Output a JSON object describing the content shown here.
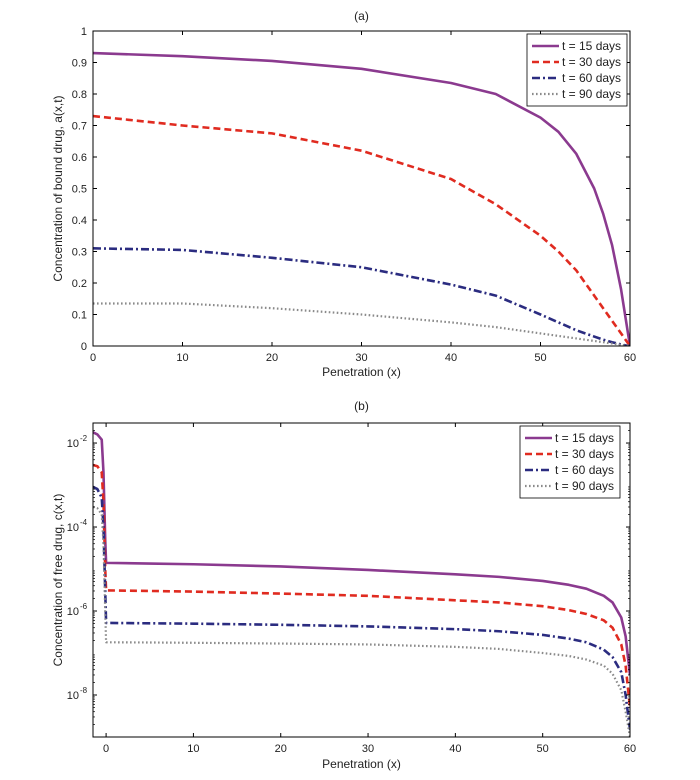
{
  "chart_data": [
    {
      "type": "line",
      "title": "(a)",
      "xlabel": "Penetration (x)",
      "ylabel": "Concentration of bound drug, a(x,t)",
      "xlim": [
        0,
        60
      ],
      "ylim": [
        0,
        1
      ],
      "yscale": "linear",
      "xticks": [
        0,
        10,
        20,
        30,
        40,
        50,
        60
      ],
      "xtick_labels": [
        "0",
        "10",
        "20",
        "30",
        "40",
        "50",
        "60"
      ],
      "yticks": [
        0,
        0.1,
        0.2,
        0.3,
        0.4,
        0.5,
        0.6,
        0.7,
        0.8,
        0.9,
        1
      ],
      "ytick_labels": [
        "0",
        "0.1",
        "0.2",
        "0.3",
        "0.4",
        "0.5",
        "0.6",
        "0.7",
        "0.8",
        "0.9",
        "1"
      ],
      "grid": false,
      "legend_position": "top-right",
      "x": [
        0,
        10,
        20,
        30,
        40,
        45,
        50,
        52,
        54,
        56,
        57,
        58,
        59,
        59.5,
        60
      ],
      "series": [
        {
          "name": "t = 15 days",
          "color": "#8b3a8f",
          "dash": "solid",
          "values": [
            0.93,
            0.92,
            0.905,
            0.88,
            0.835,
            0.8,
            0.725,
            0.68,
            0.61,
            0.5,
            0.42,
            0.32,
            0.18,
            0.09,
            0.0
          ]
        },
        {
          "name": "t = 30 days",
          "color": "#e02b20",
          "dash": "dashed",
          "values": [
            0.73,
            0.7,
            0.675,
            0.62,
            0.53,
            0.45,
            0.35,
            0.3,
            0.24,
            0.16,
            0.12,
            0.08,
            0.04,
            0.02,
            0.0
          ]
        },
        {
          "name": "t = 60 days",
          "color": "#2b2c80",
          "dash": "dashdot",
          "values": [
            0.31,
            0.305,
            0.28,
            0.25,
            0.195,
            0.16,
            0.1,
            0.075,
            0.05,
            0.03,
            0.02,
            0.012,
            0.005,
            0.002,
            0.0
          ]
        },
        {
          "name": "t = 90 days",
          "color": "#8a8a8a",
          "dash": "dotted",
          "values": [
            0.135,
            0.135,
            0.12,
            0.1,
            0.075,
            0.06,
            0.04,
            0.032,
            0.024,
            0.016,
            0.012,
            0.008,
            0.004,
            0.002,
            0.0
          ]
        }
      ]
    },
    {
      "type": "line",
      "title": "(b)",
      "xlabel": "Penetration (x)",
      "ylabel": "Concentration of free drug, c(x,t)",
      "xlim": [
        -1.5,
        60
      ],
      "ylim": [
        1e-09,
        0.03
      ],
      "yscale": "log",
      "xticks": [
        0,
        10,
        20,
        30,
        40,
        50,
        60
      ],
      "xtick_labels": [
        "0",
        "10",
        "20",
        "30",
        "40",
        "50",
        "60"
      ],
      "yticks": [
        1e-08,
        1e-06,
        0.0001,
        0.01
      ],
      "ytick_labels": [
        "10",
        "10",
        "10",
        "10"
      ],
      "ytick_exponents": [
        "-8",
        "-6",
        "-4",
        "-2"
      ],
      "grid": false,
      "legend_position": "top-right",
      "x": [
        -1.5,
        -1.0,
        -0.5,
        -0.3,
        -0.1,
        0,
        5,
        10,
        20,
        30,
        40,
        45,
        50,
        53,
        55,
        57,
        58,
        59,
        59.5,
        60
      ],
      "series": [
        {
          "name": "t = 15 days",
          "color": "#8b3a8f",
          "dash": "solid",
          "values": [
            0.018,
            0.016,
            0.012,
            0.002,
            5e-05,
            1.4e-05,
            1.35e-05,
            1.3e-05,
            1.15e-05,
            9.5e-06,
            7.5e-06,
            6.5e-06,
            5.2e-06,
            4.2e-06,
            3.4e-06,
            2.3e-06,
            1.6e-06,
            7e-07,
            2.5e-07,
            3e-08
          ]
        },
        {
          "name": "t = 30 days",
          "color": "#e02b20",
          "dash": "dashed",
          "values": [
            0.003,
            0.0028,
            0.002,
            0.0004,
            1e-05,
            3.1e-06,
            3e-06,
            2.9e-06,
            2.6e-06,
            2.3e-06,
            1.8e-06,
            1.6e-06,
            1.3e-06,
            1.05e-06,
            8.5e-07,
            6e-07,
            4e-07,
            1.6e-07,
            5e-08,
            5e-09
          ]
        },
        {
          "name": "t = 60 days",
          "color": "#2b2c80",
          "dash": "dashdot",
          "values": [
            0.0009,
            0.0008,
            0.0005,
            0.0001,
            3e-06,
            5.2e-07,
            5.1e-07,
            5e-07,
            4.7e-07,
            4.3e-07,
            3.7e-07,
            3.3e-07,
            2.7e-07,
            2.2e-07,
            1.8e-07,
            1.2e-07,
            8e-08,
            3.5e-08,
            1e-08,
            1.5e-09
          ]
        },
        {
          "name": "t = 90 days",
          "color": "#8a8a8a",
          "dash": "dotted",
          "values": [
            0.0003,
            0.00028,
            0.0002,
            4e-05,
            1e-06,
            1.8e-07,
            1.78e-07,
            1.75e-07,
            1.68e-07,
            1.6e-07,
            1.4e-07,
            1.25e-07,
            1e-07,
            8.5e-08,
            7e-08,
            5e-08,
            3.2e-08,
            1.3e-08,
            4e-09,
            1e-09
          ]
        }
      ]
    }
  ]
}
